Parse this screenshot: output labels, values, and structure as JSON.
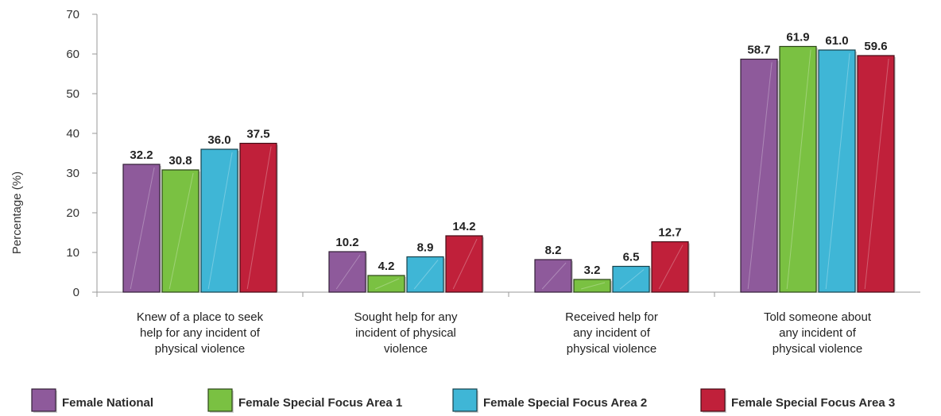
{
  "chart_data": {
    "type": "bar",
    "title": "",
    "xlabel": "",
    "ylabel": "Percentage (%)",
    "ylim": [
      0,
      70
    ],
    "yticks": [
      "0",
      "10",
      "20",
      "30",
      "40",
      "50",
      "60",
      "70"
    ],
    "grid": false,
    "legend_position": "bottom",
    "categories": [
      [
        "Knew of a place to seek",
        "help for any incident of",
        "physical violence"
      ],
      [
        "Sought help for any",
        "incident of physical",
        "violence"
      ],
      [
        "Received help for",
        "any incident of",
        "physical violence"
      ],
      [
        "Told someone about",
        "any incident of",
        "physical violence"
      ]
    ],
    "series": [
      {
        "name": "Female National",
        "color": "#8e5a9b",
        "values": [
          32.2,
          10.2,
          8.2,
          58.7
        ],
        "labels": [
          "32.2",
          "10.2",
          "8.2",
          "58.7"
        ]
      },
      {
        "name": "Female Special Focus Area 1",
        "color": "#7ac142",
        "values": [
          30.8,
          4.2,
          3.2,
          61.9
        ],
        "labels": [
          "30.8",
          "4.2",
          "3.2",
          "61.9"
        ]
      },
      {
        "name": "Female Special Focus  Area 2",
        "color": "#3fb6d6",
        "values": [
          36.0,
          8.9,
          6.5,
          61.0
        ],
        "labels": [
          "36.0",
          "8.9",
          "6.5",
          "61.0"
        ]
      },
      {
        "name": "Female Special Focus Area 3",
        "color": "#c0203a",
        "values": [
          37.5,
          14.2,
          12.7,
          59.6
        ],
        "labels": [
          "37.5",
          "14.2",
          "12.7",
          "59.6"
        ]
      }
    ]
  }
}
